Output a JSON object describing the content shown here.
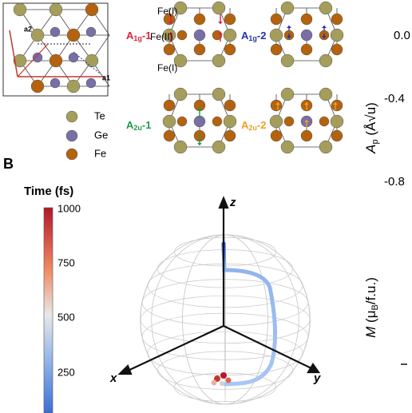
{
  "panel_a": {
    "lattice_vectors": [
      "a2",
      "a1"
    ],
    "legend": [
      "Te",
      "Ge",
      "Fe"
    ],
    "site_labels": [
      "Fe(I)",
      "Fe(II)",
      "Fe(I)"
    ],
    "modes": [
      {
        "base": "A",
        "sub": "1g",
        "suffix": "-1"
      },
      {
        "base": "A",
        "sub": "1g",
        "suffix": "-2"
      },
      {
        "base": "A",
        "sub": "2u",
        "suffix": "-1"
      },
      {
        "base": "A",
        "sub": "2u",
        "suffix": "-2"
      }
    ]
  },
  "panel_b": {
    "label": "B",
    "colorbar": {
      "title": "Time (fs)",
      "ticks": [
        "1000",
        "750",
        "500",
        "250"
      ]
    },
    "axes": [
      "z",
      "x",
      "y"
    ]
  },
  "right_column": {
    "ticks": [
      "0.0",
      "-0.4",
      "-0.8"
    ],
    "ap_label": {
      "main": "A",
      "sub": "p",
      "rest": " (Å√u)"
    },
    "m_label": {
      "main": "M",
      "rest1": " (μ",
      "sub": "B",
      "rest2": "/f.u.)"
    }
  }
}
